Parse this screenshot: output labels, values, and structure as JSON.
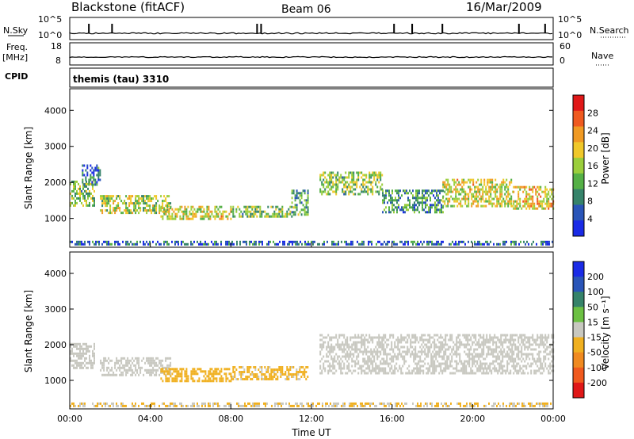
{
  "header": {
    "station": "Blackstone (fitACF)",
    "beam": "Beam 06",
    "date": "16/Mar/2009"
  },
  "top_strip": {
    "left_label": "N.Sky",
    "right_label": "N.Search",
    "left_ticks": [
      "10^5",
      "10^0"
    ],
    "right_ticks": [
      "10^5",
      "10^0"
    ]
  },
  "freq_strip": {
    "left_label_1": "Freq.",
    "left_label_2": "[MHz]",
    "right_label": "Nave",
    "left_ticks": [
      "18",
      "8"
    ],
    "right_ticks": [
      "60",
      "0"
    ]
  },
  "cpid": {
    "label": "CPID",
    "value": "themis (tau) 3310"
  },
  "colors": {
    "power_scale": [
      "#1a2be6",
      "#2a55b8",
      "#36836a",
      "#55b046",
      "#9bce3c",
      "#f0c82a",
      "#f09a24",
      "#ef5a20",
      "#e01818"
    ],
    "velocity_scale": [
      "#1a2be6",
      "#2a55b8",
      "#36836a",
      "#6cc043",
      "#c8c8c0",
      "#f0b020",
      "#f08a20",
      "#f05a1e",
      "#e01818"
    ]
  },
  "chart_data": [
    {
      "type": "heatmap",
      "name": "power-panel",
      "ylabel": "Slant Range [km]",
      "ylim": [
        200,
        4600
      ],
      "yticks": [
        "1000",
        "2000",
        "3000",
        "4000"
      ],
      "xlim_hours": [
        0,
        24
      ],
      "colorbar": {
        "label": "Power [dB]",
        "ticks": [
          "4",
          "8",
          "12",
          "16",
          "20",
          "24",
          "28"
        ],
        "range": [
          0,
          32
        ]
      },
      "echo_bands": [
        {
          "t_start": 0.0,
          "t_end": 1.2,
          "range_low": 1350,
          "range_high": 2050,
          "value": 14
        },
        {
          "t_start": 0.6,
          "t_end": 1.5,
          "range_low": 1950,
          "range_high": 2500,
          "value": 8
        },
        {
          "t_start": 1.5,
          "t_end": 5.0,
          "range_low": 1150,
          "range_high": 1650,
          "value": 16
        },
        {
          "t_start": 4.5,
          "t_end": 8.0,
          "range_low": 1000,
          "range_high": 1350,
          "value": 18
        },
        {
          "t_start": 8.0,
          "t_end": 11.0,
          "range_low": 1050,
          "range_high": 1350,
          "value": 14
        },
        {
          "t_start": 11.0,
          "t_end": 11.8,
          "range_low": 1100,
          "range_high": 1800,
          "value": 12
        },
        {
          "t_start": 12.4,
          "t_end": 15.5,
          "range_low": 1700,
          "range_high": 2300,
          "value": 14
        },
        {
          "t_start": 15.5,
          "t_end": 18.5,
          "range_low": 1200,
          "range_high": 1800,
          "value": 10
        },
        {
          "t_start": 18.5,
          "t_end": 22.0,
          "range_low": 1350,
          "range_high": 2100,
          "value": 18
        },
        {
          "t_start": 22.0,
          "t_end": 24.0,
          "range_low": 1300,
          "range_high": 1900,
          "value": 20
        },
        {
          "t_start": 0.0,
          "t_end": 24.0,
          "range_low": 250,
          "range_high": 380,
          "value": 6
        }
      ]
    },
    {
      "type": "heatmap",
      "name": "velocity-panel",
      "ylabel": "Slant Range [km]",
      "xlabel": "Time UT",
      "ylim": [
        200,
        4600
      ],
      "yticks": [
        "1000",
        "2000",
        "3000",
        "4000"
      ],
      "xticks": [
        "00:00",
        "04:00",
        "08:00",
        "12:00",
        "16:00",
        "20:00",
        "00:00"
      ],
      "xlim_hours": [
        0,
        24
      ],
      "colorbar": {
        "label": "Velocity [m s⁻¹]",
        "ticks": [
          "200",
          "100",
          "50",
          "15",
          "-15",
          "-50",
          "-100",
          "-200"
        ],
        "range": [
          -250,
          250
        ]
      },
      "echo_bands": [
        {
          "t_start": 0.0,
          "t_end": 1.2,
          "range_low": 1350,
          "range_high": 2050,
          "value": 0
        },
        {
          "t_start": 1.5,
          "t_end": 5.0,
          "range_low": 1150,
          "range_high": 1650,
          "value": 0
        },
        {
          "t_start": 4.5,
          "t_end": 8.0,
          "range_low": 1000,
          "range_high": 1350,
          "value": -50
        },
        {
          "t_start": 8.0,
          "t_end": 11.8,
          "range_low": 1050,
          "range_high": 1400,
          "value": -40
        },
        {
          "t_start": 12.4,
          "t_end": 24.0,
          "range_low": 1200,
          "range_high": 2300,
          "value": 0
        },
        {
          "t_start": 0.0,
          "t_end": 24.0,
          "range_low": 250,
          "range_high": 380,
          "value": -30
        }
      ]
    }
  ]
}
